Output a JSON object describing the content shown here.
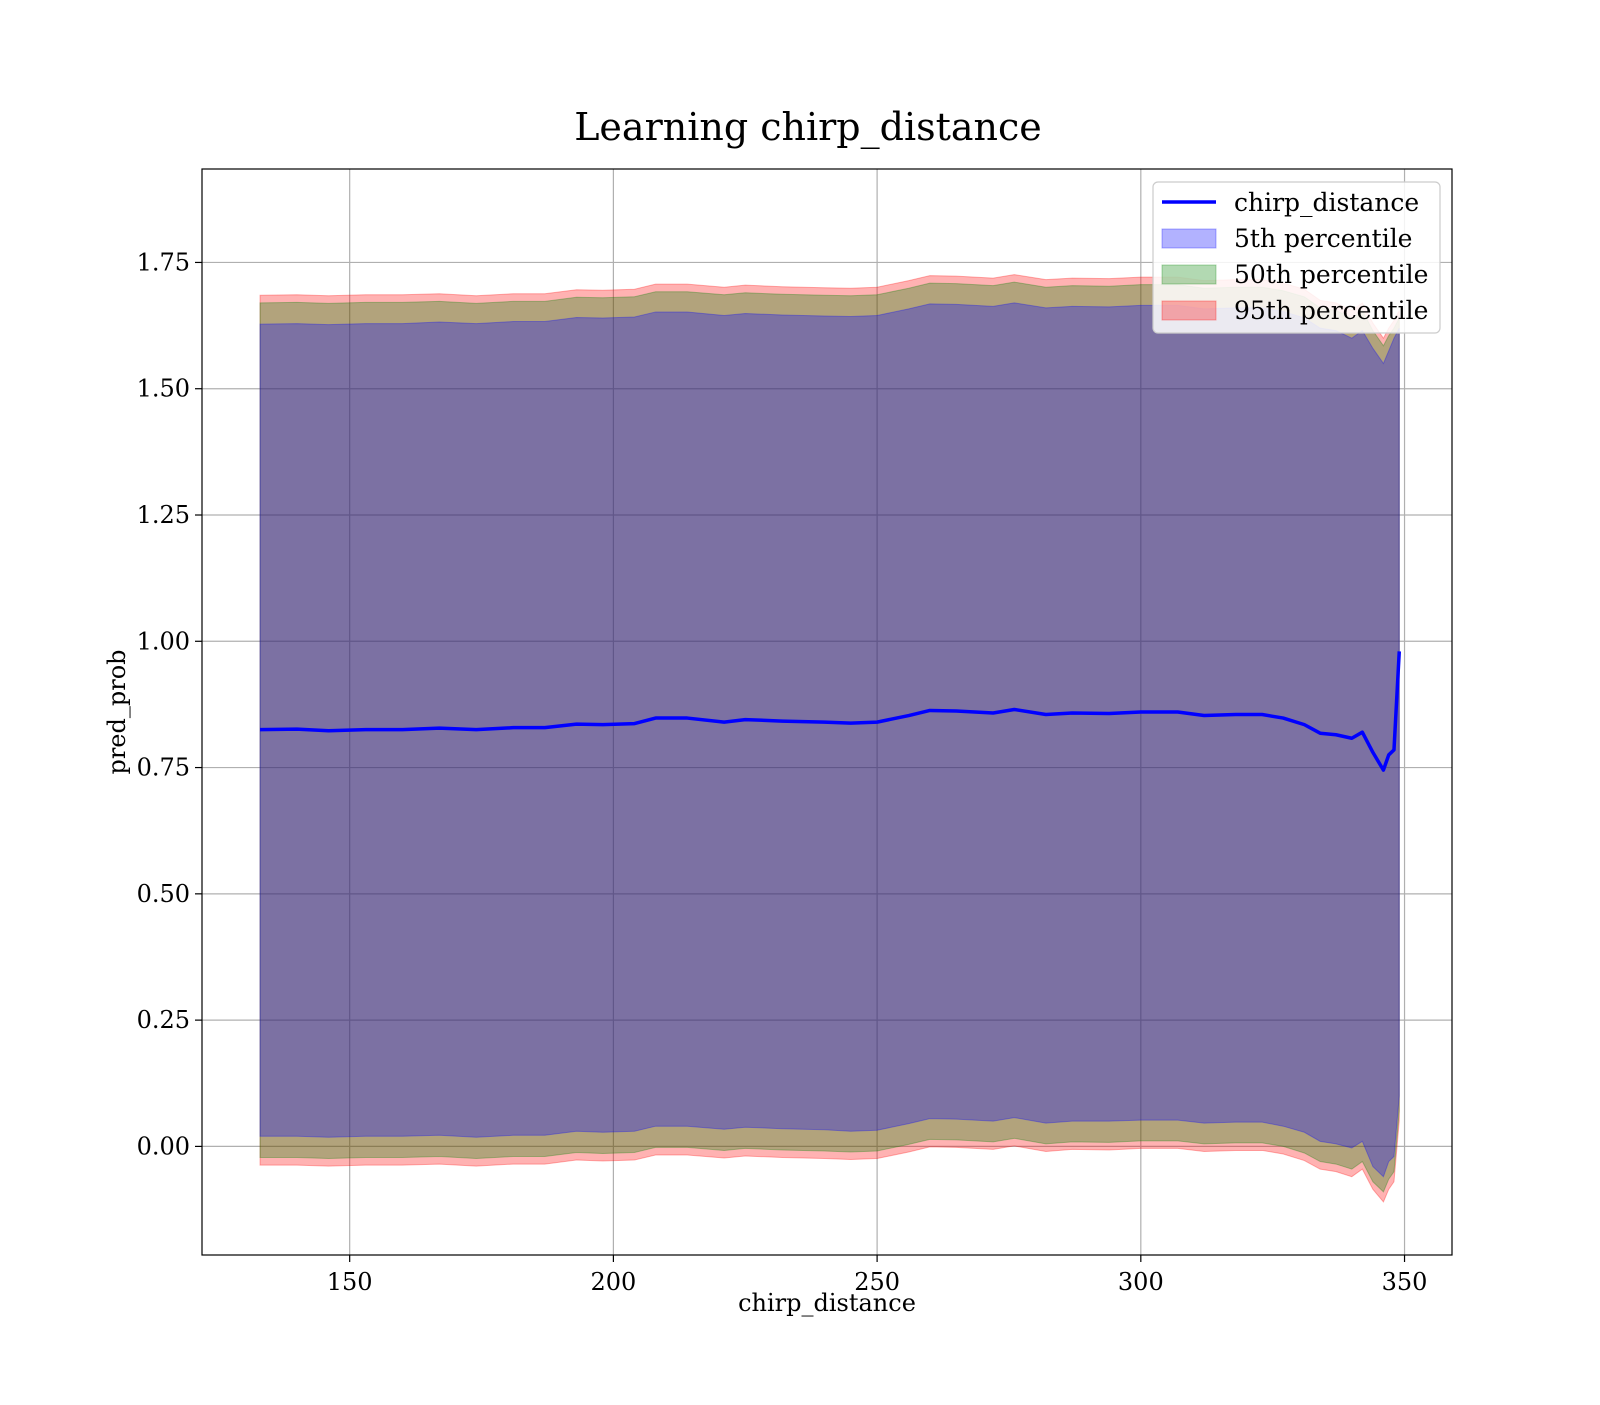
{
  "chart_data": {
    "type": "area",
    "title": "Learning chirp_distance",
    "xlabel": "chirp_distance",
    "ylabel": "pred_prob",
    "xlim": [
      122,
      359
    ],
    "ylim": [
      -0.215,
      1.935
    ],
    "xticks": [
      150,
      200,
      250,
      300,
      350
    ],
    "xtick_labels": [
      "150",
      "200",
      "250",
      "300",
      "350"
    ],
    "yticks": [
      0.0,
      0.25,
      0.5,
      0.75,
      1.0,
      1.25,
      1.5,
      1.75
    ],
    "ytick_labels": [
      "0.00",
      "0.25",
      "0.50",
      "0.75",
      "1.00",
      "1.25",
      "1.50",
      "1.75"
    ],
    "grid": true,
    "legend_position": "top-right",
    "x": [
      133,
      140,
      146,
      153,
      160,
      167,
      174,
      181,
      187,
      193,
      198,
      204,
      208,
      214,
      221,
      225,
      232,
      240,
      245,
      250,
      256,
      260,
      265,
      272,
      276,
      282,
      287,
      294,
      300,
      307,
      312,
      318,
      323,
      327,
      331,
      334,
      337,
      340,
      342,
      344,
      346,
      347,
      348,
      349
    ],
    "series": [
      {
        "name": "chirp_distance",
        "kind": "line",
        "color": "#0000ff",
        "values": [
          0.825,
          0.826,
          0.823,
          0.825,
          0.825,
          0.828,
          0.825,
          0.829,
          0.829,
          0.836,
          0.835,
          0.837,
          0.848,
          0.848,
          0.84,
          0.845,
          0.842,
          0.84,
          0.838,
          0.84,
          0.853,
          0.863,
          0.862,
          0.858,
          0.865,
          0.855,
          0.858,
          0.857,
          0.86,
          0.86,
          0.853,
          0.855,
          0.855,
          0.848,
          0.835,
          0.818,
          0.815,
          0.808,
          0.82,
          0.78,
          0.745,
          0.775,
          0.785,
          0.98
        ]
      },
      {
        "name": "5th percentile",
        "kind": "band",
        "color": "#0000ff",
        "lower": [
          0.02,
          0.02,
          0.018,
          0.02,
          0.02,
          0.022,
          0.018,
          0.022,
          0.022,
          0.03,
          0.028,
          0.03,
          0.04,
          0.04,
          0.034,
          0.038,
          0.035,
          0.033,
          0.03,
          0.032,
          0.045,
          0.055,
          0.054,
          0.05,
          0.057,
          0.046,
          0.05,
          0.05,
          0.052,
          0.052,
          0.046,
          0.048,
          0.048,
          0.04,
          0.028,
          0.01,
          0.005,
          -0.003,
          0.01,
          -0.04,
          -0.06,
          -0.03,
          -0.02,
          0.1
        ],
        "upper": [
          1.628,
          1.629,
          1.627,
          1.629,
          1.629,
          1.632,
          1.629,
          1.633,
          1.633,
          1.641,
          1.64,
          1.642,
          1.652,
          1.652,
          1.645,
          1.649,
          1.646,
          1.644,
          1.643,
          1.645,
          1.658,
          1.668,
          1.667,
          1.663,
          1.67,
          1.66,
          1.663,
          1.662,
          1.665,
          1.665,
          1.658,
          1.66,
          1.66,
          1.653,
          1.64,
          1.62,
          1.615,
          1.6,
          1.615,
          1.58,
          1.55,
          1.575,
          1.6,
          1.62
        ]
      },
      {
        "name": "50th percentile",
        "kind": "band",
        "color": "#008000",
        "lower": [
          -0.022,
          -0.022,
          -0.024,
          -0.022,
          -0.022,
          -0.02,
          -0.024,
          -0.02,
          -0.02,
          -0.012,
          -0.014,
          -0.012,
          -0.002,
          -0.002,
          -0.008,
          -0.004,
          -0.007,
          -0.009,
          -0.011,
          -0.009,
          0.004,
          0.014,
          0.013,
          0.009,
          0.016,
          0.005,
          0.009,
          0.008,
          0.011,
          0.011,
          0.005,
          0.007,
          0.007,
          0.0,
          -0.013,
          -0.03,
          -0.035,
          -0.045,
          -0.03,
          -0.07,
          -0.09,
          -0.065,
          -0.05,
          0.07
        ],
        "upper": [
          1.67,
          1.671,
          1.669,
          1.671,
          1.671,
          1.673,
          1.669,
          1.673,
          1.673,
          1.681,
          1.68,
          1.682,
          1.692,
          1.692,
          1.686,
          1.69,
          1.687,
          1.685,
          1.684,
          1.686,
          1.699,
          1.709,
          1.708,
          1.704,
          1.711,
          1.701,
          1.704,
          1.703,
          1.706,
          1.706,
          1.699,
          1.701,
          1.701,
          1.694,
          1.682,
          1.66,
          1.655,
          1.64,
          1.655,
          1.615,
          1.585,
          1.605,
          1.62,
          1.64
        ]
      },
      {
        "name": "95th percentile",
        "kind": "band",
        "color": "#ff0000",
        "lower": [
          -0.037,
          -0.037,
          -0.039,
          -0.037,
          -0.037,
          -0.035,
          -0.039,
          -0.035,
          -0.035,
          -0.027,
          -0.029,
          -0.027,
          -0.017,
          -0.017,
          -0.023,
          -0.019,
          -0.022,
          -0.024,
          -0.026,
          -0.024,
          -0.011,
          -0.001,
          -0.002,
          -0.006,
          0.001,
          -0.01,
          -0.006,
          -0.007,
          -0.004,
          -0.004,
          -0.01,
          -0.008,
          -0.008,
          -0.015,
          -0.028,
          -0.045,
          -0.05,
          -0.06,
          -0.045,
          -0.085,
          -0.11,
          -0.085,
          -0.07,
          0.05
        ],
        "upper": [
          1.685,
          1.686,
          1.684,
          1.686,
          1.686,
          1.688,
          1.684,
          1.688,
          1.688,
          1.696,
          1.695,
          1.697,
          1.707,
          1.707,
          1.701,
          1.705,
          1.702,
          1.7,
          1.699,
          1.701,
          1.714,
          1.724,
          1.723,
          1.719,
          1.726,
          1.716,
          1.719,
          1.718,
          1.721,
          1.721,
          1.714,
          1.716,
          1.716,
          1.709,
          1.697,
          1.675,
          1.67,
          1.655,
          1.67,
          1.63,
          1.6,
          1.62,
          1.635,
          1.655
        ]
      }
    ]
  }
}
